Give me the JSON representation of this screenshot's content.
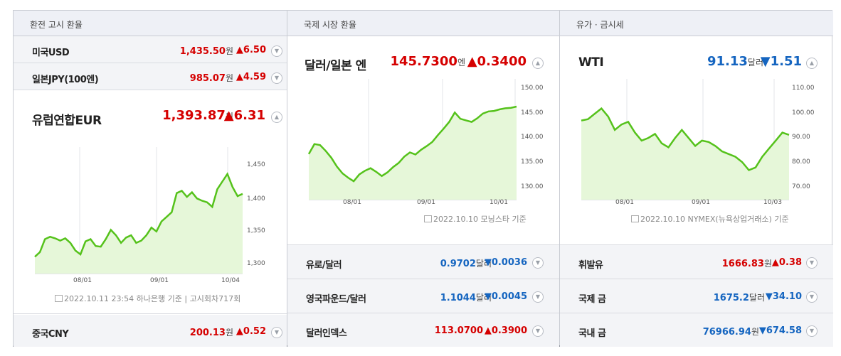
{
  "col1": {
    "header": "환전 고시 환율",
    "usd": {
      "label": "미국USD",
      "value": "1,435.50",
      "unit": "원",
      "change": "▲6.50"
    },
    "jpy": {
      "label": "일본JPY(100엔)",
      "value": "985.07",
      "unit": "원",
      "change": "▲4.59"
    },
    "eur": {
      "label": "유럽연합EUR",
      "value": "1,393.87",
      "unit": "원",
      "change": "▲6.31"
    },
    "chart_yticks": [
      "1,450",
      "1,400",
      "1,350",
      "1,300"
    ],
    "chart_xticks": [
      "08/01",
      "09/01",
      "10/04"
    ],
    "source": "2022.10.11 23:54 하나은행 기준 | 고시회차717회",
    "cny": {
      "label": "중국CNY",
      "value": "200.13",
      "unit": "원",
      "change": "▲0.52"
    }
  },
  "col2": {
    "header": "국제 시장 환율",
    "main": {
      "label": "달러/일본 엔",
      "value": "145.7300",
      "unit": "엔",
      "change": "▲0.3400"
    },
    "chart_yticks": [
      "150.00",
      "145.00",
      "140.00",
      "135.00",
      "130.00"
    ],
    "chart_xticks": [
      "08/01",
      "09/01",
      "10/01"
    ],
    "source": "2022.10.10 모닝스타 기준",
    "eurusd": {
      "label": "유로/달러",
      "value": "0.9702",
      "unit": "달러",
      "change": "▼0.0036"
    },
    "gbpusd": {
      "label": "영국파운드/달러",
      "value": "1.1044",
      "unit": "달러",
      "change": "▼0.0045"
    },
    "dxy": {
      "label": "달러인덱스",
      "value": "113.0700",
      "unit": "",
      "change": "▲0.3900"
    }
  },
  "col3": {
    "header": "유가 · 금시세",
    "main": {
      "label": "WTI",
      "value": "91.13",
      "unit": "달러",
      "change": "▼1.51"
    },
    "chart_yticks": [
      "110.00",
      "100.00",
      "90.00",
      "80.00",
      "70.00"
    ],
    "chart_xticks": [
      "08/01",
      "09/01",
      "10/03"
    ],
    "source": "2022.10.10 NYMEX(뉴욕상업거래소) 기준",
    "gasoline": {
      "label": "휘발유",
      "value": "1666.83",
      "unit": "원",
      "change": "▲0.38"
    },
    "intl_gold": {
      "label": "국제 금",
      "value": "1675.2",
      "unit": "달러",
      "change": "▼34.10"
    },
    "dom_gold": {
      "label": "국내 금",
      "value": "76966.94",
      "unit": "원",
      "change": "▼674.58"
    }
  },
  "colors": {
    "up": "#d50000",
    "down": "#1565c0",
    "line": "#55c21b",
    "fill": "#e6f7d9"
  },
  "chart_data": [
    {
      "type": "area",
      "series": [
        {
          "values": [
            1312,
            1318,
            1335,
            1338,
            1336,
            1333,
            1336,
            1330,
            1320,
            1315,
            1332,
            1335,
            1326,
            1325,
            1335,
            1347,
            1340,
            1330,
            1337,
            1340,
            1330,
            1333,
            1340,
            1350,
            1345,
            1358,
            1364,
            1370,
            1395,
            1398,
            1390,
            1396,
            1388,
            1385,
            1383,
            1377,
            1400,
            1410,
            1420,
            1403,
            1391,
            1394
          ]
        }
      ],
      "ylim": [
        1290,
        1455
      ]
    },
    {
      "type": "area",
      "series": [
        {
          "values": [
            136.7,
            138.6,
            138.4,
            137.3,
            136.0,
            134.3,
            133.0,
            132.2,
            131.5,
            132.8,
            133.5,
            134.0,
            133.3,
            132.5,
            133.2,
            134.2,
            135.0,
            136.2,
            137.0,
            136.6,
            137.5,
            138.2,
            139.0,
            140.3,
            141.5,
            142.8,
            144.6,
            143.4,
            143.1,
            142.8,
            143.5,
            144.4,
            144.8,
            144.9,
            145.2,
            145.4,
            145.5,
            145.73
          ]
        }
      ],
      "ylim": [
        128,
        151
      ]
    },
    {
      "type": "area",
      "series": [
        {
          "values": [
            96.5,
            97.0,
            99.0,
            101.0,
            98.0,
            93.0,
            95.0,
            96.0,
            92.0,
            89.0,
            90.0,
            91.5,
            88.0,
            86.5,
            90.0,
            93.0,
            90.0,
            87.0,
            89.0,
            88.5,
            87.0,
            85.0,
            84.0,
            83.0,
            81.0,
            78.0,
            79.0,
            83.0,
            86.0,
            89.0,
            92.0,
            91.13
          ]
        }
      ],
      "ylim": [
        67,
        112
      ]
    }
  ]
}
